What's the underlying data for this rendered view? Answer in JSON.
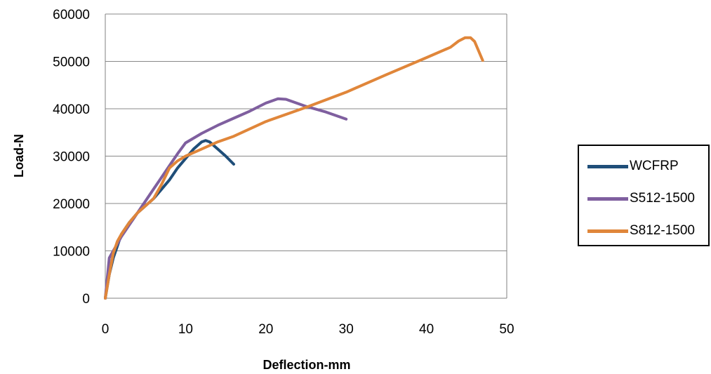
{
  "chart_data": {
    "type": "line",
    "title": "",
    "xlabel": "Deflection-mm",
    "ylabel": "Load-N",
    "xlim": [
      0,
      50
    ],
    "ylim": [
      0,
      60000
    ],
    "x_ticks": [
      "0",
      "10",
      "20",
      "30",
      "40",
      "50"
    ],
    "y_ticks": [
      "0",
      "10000",
      "20000",
      "30000",
      "40000",
      "50000",
      "60000"
    ],
    "grid": "horizontal",
    "legend_position": "right",
    "series": [
      {
        "name": "WCFRP",
        "color": "#1f4e79",
        "points": [
          [
            0,
            0
          ],
          [
            0.5,
            5000
          ],
          [
            1,
            8500
          ],
          [
            1.5,
            11000
          ],
          [
            2,
            13500
          ],
          [
            3,
            16000
          ],
          [
            4,
            18000
          ],
          [
            5,
            19500
          ],
          [
            6,
            21000
          ],
          [
            7,
            23000
          ],
          [
            8,
            25000
          ],
          [
            9,
            27500
          ],
          [
            10,
            29500
          ],
          [
            11,
            31500
          ],
          [
            12,
            33000
          ],
          [
            12.5,
            33300
          ],
          [
            13,
            33000
          ],
          [
            14,
            31500
          ],
          [
            15,
            30000
          ],
          [
            16,
            28300
          ]
        ]
      },
      {
        "name": "S512-1500",
        "color": "#7f5f9f",
        "points": [
          [
            0,
            0
          ],
          [
            0.5,
            8500
          ],
          [
            1,
            10000
          ],
          [
            1.5,
            11500
          ],
          [
            2,
            13000
          ],
          [
            3,
            15500
          ],
          [
            4,
            18000
          ],
          [
            5,
            20500
          ],
          [
            6,
            23000
          ],
          [
            7,
            25500
          ],
          [
            8,
            28000
          ],
          [
            9,
            30500
          ],
          [
            10,
            32800
          ],
          [
            12,
            34800
          ],
          [
            14,
            36500
          ],
          [
            16,
            38000
          ],
          [
            18,
            39500
          ],
          [
            20,
            41200
          ],
          [
            21.5,
            42100
          ],
          [
            22.5,
            42000
          ],
          [
            25,
            40500
          ],
          [
            27.5,
            39300
          ],
          [
            30,
            37800
          ]
        ]
      },
      {
        "name": "S812-1500",
        "color": "#e0863a",
        "points": [
          [
            0,
            0
          ],
          [
            0.5,
            5000
          ],
          [
            1,
            9500
          ],
          [
            1.5,
            12000
          ],
          [
            2,
            13500
          ],
          [
            3,
            16000
          ],
          [
            4,
            18000
          ],
          [
            5,
            19500
          ],
          [
            6,
            21000
          ],
          [
            7,
            24000
          ],
          [
            8,
            27500
          ],
          [
            9,
            29000
          ],
          [
            10,
            30000
          ],
          [
            12,
            31500
          ],
          [
            14,
            33000
          ],
          [
            16,
            34200
          ],
          [
            20,
            37300
          ],
          [
            25,
            40300
          ],
          [
            30,
            43500
          ],
          [
            35,
            47200
          ],
          [
            40,
            50800
          ],
          [
            43,
            53000
          ],
          [
            44,
            54300
          ],
          [
            44.8,
            55000
          ],
          [
            45.5,
            55000
          ],
          [
            46,
            54200
          ],
          [
            47,
            50200
          ]
        ]
      }
    ]
  }
}
